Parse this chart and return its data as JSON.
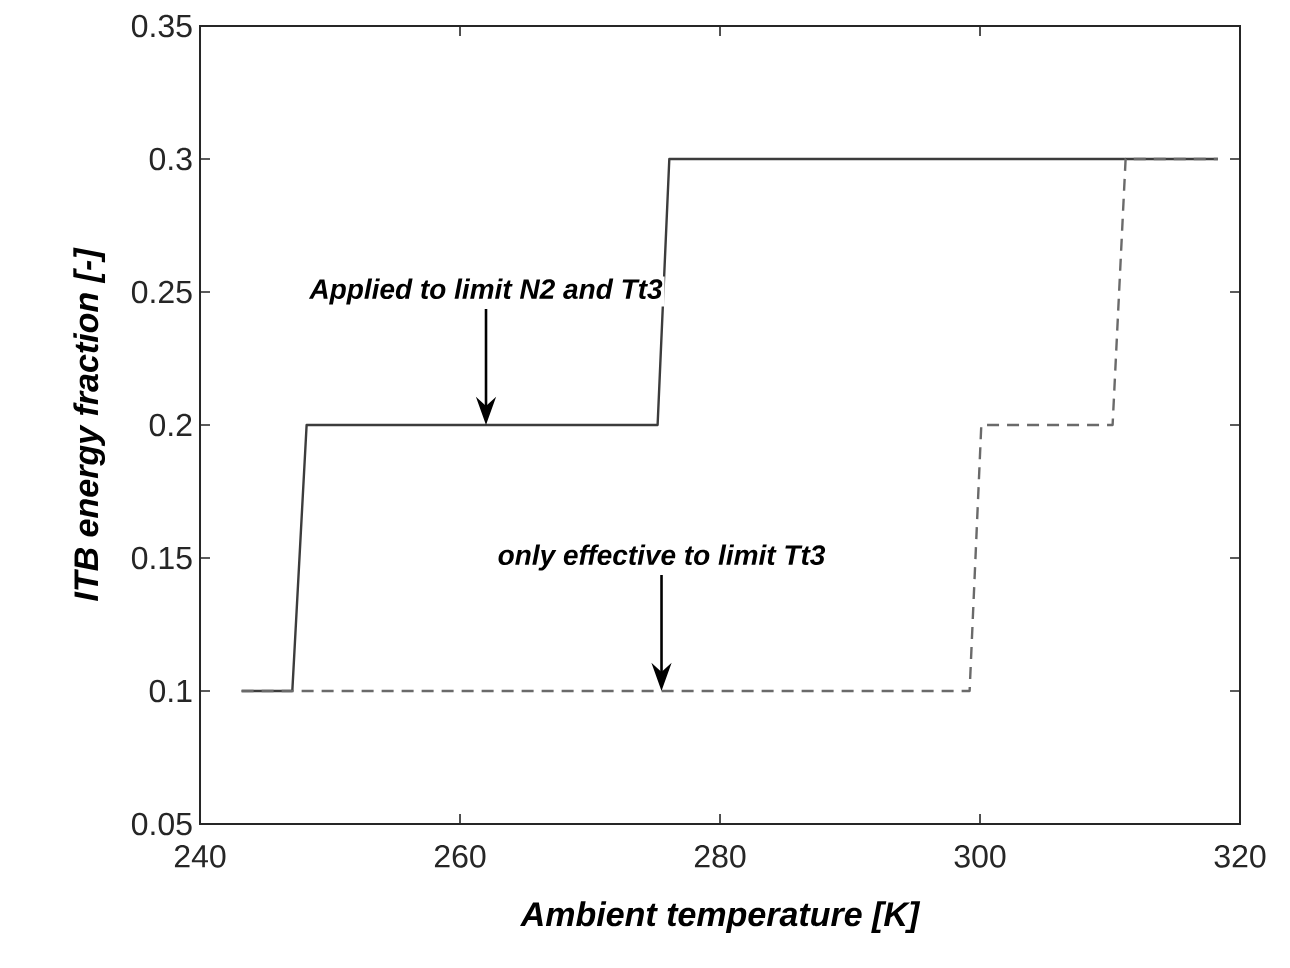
{
  "chart_data": {
    "type": "line",
    "xlabel": "Ambient temperature [K]",
    "ylabel": "ITB energy fraction [-]",
    "series": [
      {
        "color": "#3c3c3c",
        "line_style": "solid",
        "x": [
          243.2,
          247.1,
          248.2,
          275.2,
          276.1,
          318.3
        ],
        "values": [
          0.1,
          0.1,
          0.2,
          0.2,
          0.3,
          0.3
        ]
      },
      {
        "color": "#6a6a6a",
        "line_style": "dashed",
        "x": [
          243.2,
          299.2,
          300.1,
          310.2,
          311.2,
          318.3
        ],
        "values": [
          0.1,
          0.1,
          0.2,
          0.2,
          0.3,
          0.3
        ]
      }
    ],
    "annotations": [
      {
        "text": "Applied to limit N2 and Tt3",
        "x": 262,
        "y": 0.2
      },
      {
        "text": "only effective to limit Tt3",
        "x": 275.5,
        "y": 0.1
      }
    ],
    "xlim": [
      240,
      320
    ],
    "ylim": [
      0.05,
      0.35
    ],
    "xticks": [
      240,
      260,
      280,
      300,
      320
    ],
    "yticks": [
      0.05,
      0.1,
      0.15,
      0.2,
      0.25,
      0.3,
      0.35
    ]
  }
}
